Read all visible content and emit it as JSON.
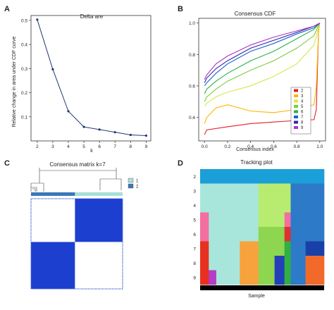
{
  "panels": {
    "A": "A",
    "B": "B",
    "C": "C",
    "D": "D"
  },
  "chart_data": [
    {
      "id": "delta-area",
      "type": "line",
      "title": "Delta are",
      "xlabel": "k",
      "ylabel": "Relative change in area under CDF curve",
      "x": [
        2,
        3,
        4,
        5,
        6,
        7,
        8,
        9
      ],
      "series": [
        {
          "values": [
            0.503,
            0.297,
            0.123,
            0.058,
            0.047,
            0.036,
            0.025,
            0.022
          ]
        }
      ],
      "xlim": [
        1.6,
        9.3
      ],
      "ylim": [
        0.0,
        0.52
      ],
      "xticks": [
        "2",
        "3",
        "4",
        "5",
        "6",
        "7",
        "8",
        "9"
      ],
      "yticks": [
        "0.1",
        "0.2",
        "0.3",
        "0.4",
        "0.5"
      ],
      "ytick_values": [
        0.1,
        0.2,
        0.3,
        0.4,
        0.5
      ],
      "line_color": "#1f3a73",
      "grid": false
    },
    {
      "id": "consensus-cdf",
      "type": "line",
      "title": "Consensus CDF",
      "xlabel": "Consensus index",
      "ylabel": "",
      "xlim": [
        -0.05,
        1.05
      ],
      "ylim": [
        0.25,
        1.03
      ],
      "xticks": [
        "0.0",
        "0.2",
        "0.4",
        "0.6",
        "0.8",
        "1.0"
      ],
      "xtick_values": [
        0.0,
        0.2,
        0.4,
        0.6,
        0.8,
        1.0
      ],
      "yticks": [
        "0.4",
        "0.6",
        "0.8",
        "1.0"
      ],
      "ytick_values": [
        0.4,
        0.6,
        0.8,
        1.0
      ],
      "legend_position": "bottom-right",
      "series": [
        {
          "name": "2",
          "color": "#e0202a",
          "x": [
            0.0,
            0.02,
            0.2,
            0.4,
            0.6,
            0.8,
            0.95,
            0.97,
            0.99,
            1.0
          ],
          "y": [
            0.29,
            0.32,
            0.34,
            0.36,
            0.37,
            0.38,
            0.385,
            0.45,
            0.97,
            1.0
          ]
        },
        {
          "name": "3",
          "color": "#ffb400",
          "x": [
            0.0,
            0.02,
            0.1,
            0.2,
            0.4,
            0.6,
            0.8,
            0.95,
            0.97,
            0.99,
            1.0
          ],
          "y": [
            0.36,
            0.4,
            0.46,
            0.48,
            0.44,
            0.43,
            0.45,
            0.48,
            0.6,
            0.95,
            1.0
          ]
        },
        {
          "name": "4",
          "color": "#d7e84a",
          "x": [
            0.0,
            0.02,
            0.1,
            0.2,
            0.4,
            0.6,
            0.8,
            0.95,
            1.0
          ],
          "y": [
            0.47,
            0.49,
            0.53,
            0.56,
            0.6,
            0.66,
            0.74,
            0.86,
            1.0
          ]
        },
        {
          "name": "5",
          "color": "#7ccc3c",
          "x": [
            0.0,
            0.02,
            0.1,
            0.2,
            0.4,
            0.6,
            0.8,
            0.95,
            1.0
          ],
          "y": [
            0.5,
            0.53,
            0.58,
            0.63,
            0.7,
            0.76,
            0.84,
            0.92,
            1.0
          ]
        },
        {
          "name": "6",
          "color": "#28b048",
          "x": [
            0.0,
            0.02,
            0.1,
            0.2,
            0.4,
            0.6,
            0.8,
            0.95,
            1.0
          ],
          "y": [
            0.55,
            0.58,
            0.63,
            0.68,
            0.76,
            0.82,
            0.9,
            0.96,
            1.0
          ]
        },
        {
          "name": "7",
          "color": "#1f5fd8",
          "x": [
            0.0,
            0.02,
            0.1,
            0.2,
            0.4,
            0.6,
            0.8,
            0.95,
            1.0
          ],
          "y": [
            0.6,
            0.62,
            0.68,
            0.74,
            0.82,
            0.87,
            0.93,
            0.97,
            1.0
          ]
        },
        {
          "name": "8",
          "color": "#2a2aa0",
          "x": [
            0.0,
            0.02,
            0.1,
            0.2,
            0.4,
            0.6,
            0.8,
            0.95,
            1.0
          ],
          "y": [
            0.62,
            0.65,
            0.71,
            0.76,
            0.84,
            0.89,
            0.94,
            0.98,
            1.0
          ]
        },
        {
          "name": "9",
          "color": "#b030c8",
          "x": [
            0.0,
            0.02,
            0.1,
            0.2,
            0.4,
            0.6,
            0.8,
            0.95,
            1.0
          ],
          "y": [
            0.64,
            0.67,
            0.74,
            0.79,
            0.86,
            0.91,
            0.95,
            0.98,
            1.0
          ]
        }
      ]
    },
    {
      "id": "consensus-matrix",
      "type": "heatmap",
      "title": "Consensus matrix k=7",
      "cluster_labels": [
        "1",
        "2"
      ],
      "cluster_colors": [
        "#a8e0d8",
        "#3a78b8"
      ],
      "matrix_high_color": "#1c3fcf",
      "matrix_low_color": "#ffffff",
      "blocks": [
        {
          "row": 0,
          "col": 0,
          "value": 0.0
        },
        {
          "row": 0,
          "col": 1,
          "value": 1.0
        },
        {
          "row": 1,
          "col": 0,
          "value": 1.0
        },
        {
          "row": 1,
          "col": 1,
          "value": 0.0
        }
      ],
      "legend_position": "right"
    },
    {
      "id": "tracking-plot",
      "type": "heatmap",
      "title": "Tracking plot",
      "xlabel": "Sample",
      "rows": [
        "2",
        "3",
        "4",
        "5",
        "6",
        "7",
        "8",
        "9"
      ],
      "segments": [
        [
          {
            "start": 0.0,
            "end": 0.47,
            "color": "#1b9fd8"
          },
          {
            "start": 0.47,
            "end": 1.0,
            "color": "#1b9fd8"
          }
        ],
        [
          {
            "start": 0.0,
            "end": 0.47,
            "color": "#a8e6dc"
          },
          {
            "start": 0.47,
            "end": 0.73,
            "color": "#b8ec70"
          },
          {
            "start": 0.73,
            "end": 1.0,
            "color": "#2d7ac8"
          }
        ],
        [
          {
            "start": 0.0,
            "end": 0.47,
            "color": "#a8e6dc"
          },
          {
            "start": 0.47,
            "end": 0.73,
            "color": "#b8ec70"
          },
          {
            "start": 0.73,
            "end": 1.0,
            "color": "#2d7ac8"
          }
        ],
        [
          {
            "start": 0.0,
            "end": 0.07,
            "color": "#f26fa0"
          },
          {
            "start": 0.07,
            "end": 0.47,
            "color": "#a8e6dc"
          },
          {
            "start": 0.47,
            "end": 0.68,
            "color": "#b8ec70"
          },
          {
            "start": 0.68,
            "end": 0.73,
            "color": "#f26fa0"
          },
          {
            "start": 0.73,
            "end": 1.0,
            "color": "#2d7ac8"
          }
        ],
        [
          {
            "start": 0.0,
            "end": 0.07,
            "color": "#f26fa0"
          },
          {
            "start": 0.07,
            "end": 0.47,
            "color": "#a8e6dc"
          },
          {
            "start": 0.47,
            "end": 0.68,
            "color": "#8ed650"
          },
          {
            "start": 0.68,
            "end": 0.73,
            "color": "#e03030"
          },
          {
            "start": 0.73,
            "end": 1.0,
            "color": "#2d7ac8"
          }
        ],
        [
          {
            "start": 0.0,
            "end": 0.07,
            "color": "#e83020"
          },
          {
            "start": 0.07,
            "end": 0.32,
            "color": "#a8e6dc"
          },
          {
            "start": 0.32,
            "end": 0.47,
            "color": "#f7a23c"
          },
          {
            "start": 0.47,
            "end": 0.68,
            "color": "#8ed650"
          },
          {
            "start": 0.68,
            "end": 0.73,
            "color": "#30b040"
          },
          {
            "start": 0.73,
            "end": 0.85,
            "color": "#2d7ac8"
          },
          {
            "start": 0.85,
            "end": 1.0,
            "color": "#1840a8"
          }
        ],
        [
          {
            "start": 0.0,
            "end": 0.07,
            "color": "#e83020"
          },
          {
            "start": 0.07,
            "end": 0.32,
            "color": "#a8e6dc"
          },
          {
            "start": 0.32,
            "end": 0.47,
            "color": "#f7a23c"
          },
          {
            "start": 0.47,
            "end": 0.6,
            "color": "#8ed650"
          },
          {
            "start": 0.6,
            "end": 0.68,
            "color": "#2440b8"
          },
          {
            "start": 0.68,
            "end": 0.73,
            "color": "#30b040"
          },
          {
            "start": 0.73,
            "end": 0.85,
            "color": "#2d7ac8"
          },
          {
            "start": 0.85,
            "end": 1.0,
            "color": "#f26a2a"
          }
        ],
        [
          {
            "start": 0.0,
            "end": 0.07,
            "color": "#e83020"
          },
          {
            "start": 0.07,
            "end": 0.13,
            "color": "#b43cc8"
          },
          {
            "start": 0.13,
            "end": 0.32,
            "color": "#a8e6dc"
          },
          {
            "start": 0.32,
            "end": 0.47,
            "color": "#f7a23c"
          },
          {
            "start": 0.47,
            "end": 0.6,
            "color": "#8ed650"
          },
          {
            "start": 0.6,
            "end": 0.68,
            "color": "#2440b8"
          },
          {
            "start": 0.68,
            "end": 0.73,
            "color": "#30b040"
          },
          {
            "start": 0.73,
            "end": 0.85,
            "color": "#2d7ac8"
          },
          {
            "start": 0.85,
            "end": 1.0,
            "color": "#f26a2a"
          }
        ]
      ],
      "sample_bar_color": "#000000"
    }
  ]
}
